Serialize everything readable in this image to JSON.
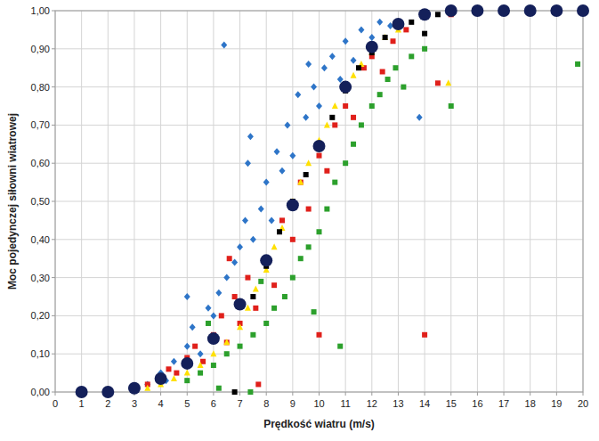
{
  "chart_data": {
    "type": "scatter",
    "x_label": "Prędkość wiatru (m/s)",
    "y_label": "Moc pojedynczej siłowni wiatrowej",
    "xlim": [
      0,
      20
    ],
    "ylim": [
      0,
      1
    ],
    "xticks": [
      0,
      1,
      2,
      3,
      4,
      5,
      6,
      7,
      8,
      9,
      10,
      11,
      12,
      13,
      14,
      15,
      16,
      17,
      18,
      19,
      20
    ],
    "yticks": [
      {
        "value": 0,
        "label": "0,00"
      },
      {
        "value": 0.1,
        "label": "0,10"
      },
      {
        "value": 0.2,
        "label": "0,20"
      },
      {
        "value": 0.3,
        "label": "0,30"
      },
      {
        "value": 0.4,
        "label": "0,40"
      },
      {
        "value": 0.5,
        "label": "0,50"
      },
      {
        "value": 0.6,
        "label": "0,60"
      },
      {
        "value": 0.7,
        "label": "0,70"
      },
      {
        "value": 0.8,
        "label": "0,80"
      },
      {
        "value": 0.9,
        "label": "0,90"
      },
      {
        "value": 1,
        "label": "1,00"
      }
    ],
    "grid": true,
    "series": [
      {
        "color": "#2e75c8",
        "marker": "diamond",
        "x": [
          3.5,
          4,
          4.5,
          5,
          5.2,
          5.5,
          5.8,
          6,
          6.2,
          6.5,
          6.8,
          7,
          7.2,
          7.3,
          7.5,
          7.8,
          8,
          8.2,
          8.4,
          8.6,
          8.8,
          9,
          9.2,
          9.5,
          9.8,
          10,
          10.2,
          10.5,
          10.8,
          11,
          11.3,
          11.6,
          12,
          12.3,
          12.7,
          6.4,
          13.8,
          7.4,
          5,
          4.2,
          9.6
        ],
        "values": [
          0.02,
          0.05,
          0.08,
          0.12,
          0.17,
          0.1,
          0.22,
          0.2,
          0.26,
          0.3,
          0.34,
          0.38,
          0.45,
          0.6,
          0.4,
          0.48,
          0.55,
          0.45,
          0.63,
          0.58,
          0.7,
          0.62,
          0.78,
          0.72,
          0.8,
          0.75,
          0.85,
          0.88,
          0.82,
          0.92,
          0.87,
          0.95,
          0.93,
          0.97,
          0.96,
          0.91,
          0.72,
          0.67,
          0.25,
          0.03,
          0.86
        ]
      },
      {
        "color": "#e0201b",
        "marker": "square",
        "x": [
          3,
          3.5,
          4,
          4.3,
          4.6,
          5,
          5.3,
          5.6,
          6,
          6.3,
          6.5,
          6.8,
          7,
          7.3,
          7.6,
          8,
          8.3,
          8.6,
          9,
          9.3,
          9.6,
          10,
          10.3,
          10.6,
          11,
          11.3,
          11.7,
          12,
          12.4,
          12.8,
          13.3,
          14.5,
          14,
          15,
          7.7,
          6.6,
          10
        ],
        "values": [
          0.01,
          0.02,
          0.03,
          0.06,
          0.05,
          0.09,
          0.12,
          0.08,
          0.15,
          0.2,
          0.13,
          0.25,
          0.18,
          0.3,
          0.22,
          0.35,
          0.28,
          0.45,
          0.4,
          0.55,
          0.48,
          0.62,
          0.58,
          0.7,
          0.75,
          0.72,
          0.85,
          0.88,
          0.84,
          0.92,
          0.95,
          0.81,
          0.15,
          0.99,
          0.02,
          0.35,
          0.15
        ]
      },
      {
        "color": "#2ca02c",
        "marker": "square",
        "x": [
          5,
          5.5,
          6,
          6.5,
          7,
          7.4,
          7.5,
          8,
          8.3,
          8.7,
          9,
          9.3,
          9.6,
          10,
          10.3,
          10.6,
          11,
          11.3,
          11.6,
          12,
          12.3,
          12.6,
          12.9,
          13.2,
          13.5,
          14,
          15,
          19.8,
          10.8,
          9.8,
          7.8,
          5.8,
          6.2
        ],
        "values": [
          0.03,
          0.05,
          0.07,
          0.1,
          0.12,
          0.0,
          0.15,
          0.18,
          0.22,
          0.25,
          0.3,
          0.35,
          0.38,
          0.42,
          0.48,
          0.55,
          0.6,
          0.65,
          0.7,
          0.75,
          0.78,
          0.82,
          0.85,
          0.8,
          0.88,
          0.9,
          0.75,
          0.86,
          0.12,
          0.21,
          0.29,
          0.18,
          0.01
        ]
      },
      {
        "color": "#ffe000",
        "marker": "triangle",
        "x": [
          1,
          2,
          3,
          3.5,
          4,
          4.5,
          5,
          5.5,
          6,
          6.5,
          7,
          7.3,
          7.6,
          8,
          8.3,
          8.6,
          9,
          9.3,
          9.6,
          10,
          10.3,
          10.6,
          11,
          11.3,
          11.6,
          12,
          12.5,
          13,
          14.9
        ],
        "values": [
          0,
          0,
          0.005,
          0.01,
          0.02,
          0.035,
          0.05,
          0.07,
          0.1,
          0.13,
          0.17,
          0.22,
          0.27,
          0.32,
          0.38,
          0.43,
          0.5,
          0.55,
          0.6,
          0.66,
          0.7,
          0.75,
          0.8,
          0.83,
          0.86,
          0.89,
          0.93,
          0.95,
          0.81
        ]
      },
      {
        "color": "#000000",
        "marker": "square",
        "x": [
          6.8,
          7.5,
          8,
          8.5,
          9,
          9.5,
          10,
          10.5,
          11,
          11.5,
          12,
          12.5,
          13,
          13.5,
          14,
          14.5,
          15
        ],
        "values": [
          0.0,
          0.25,
          0.33,
          0.42,
          0.5,
          0.57,
          0.65,
          0.72,
          0.79,
          0.85,
          0.89,
          0.93,
          0.96,
          0.97,
          0.94,
          0.99,
          1.0
        ]
      },
      {
        "color": "#14205a",
        "marker": "circle",
        "x": [
          1,
          2,
          3,
          4,
          5,
          6,
          7,
          8,
          9,
          10,
          11,
          12,
          13,
          14,
          15,
          16,
          17,
          18,
          19,
          20
        ],
        "values": [
          0,
          0,
          0.01,
          0.035,
          0.075,
          0.14,
          0.23,
          0.345,
          0.49,
          0.645,
          0.8,
          0.905,
          0.965,
          0.99,
          1,
          1,
          1,
          1,
          1,
          1
        ]
      }
    ]
  }
}
